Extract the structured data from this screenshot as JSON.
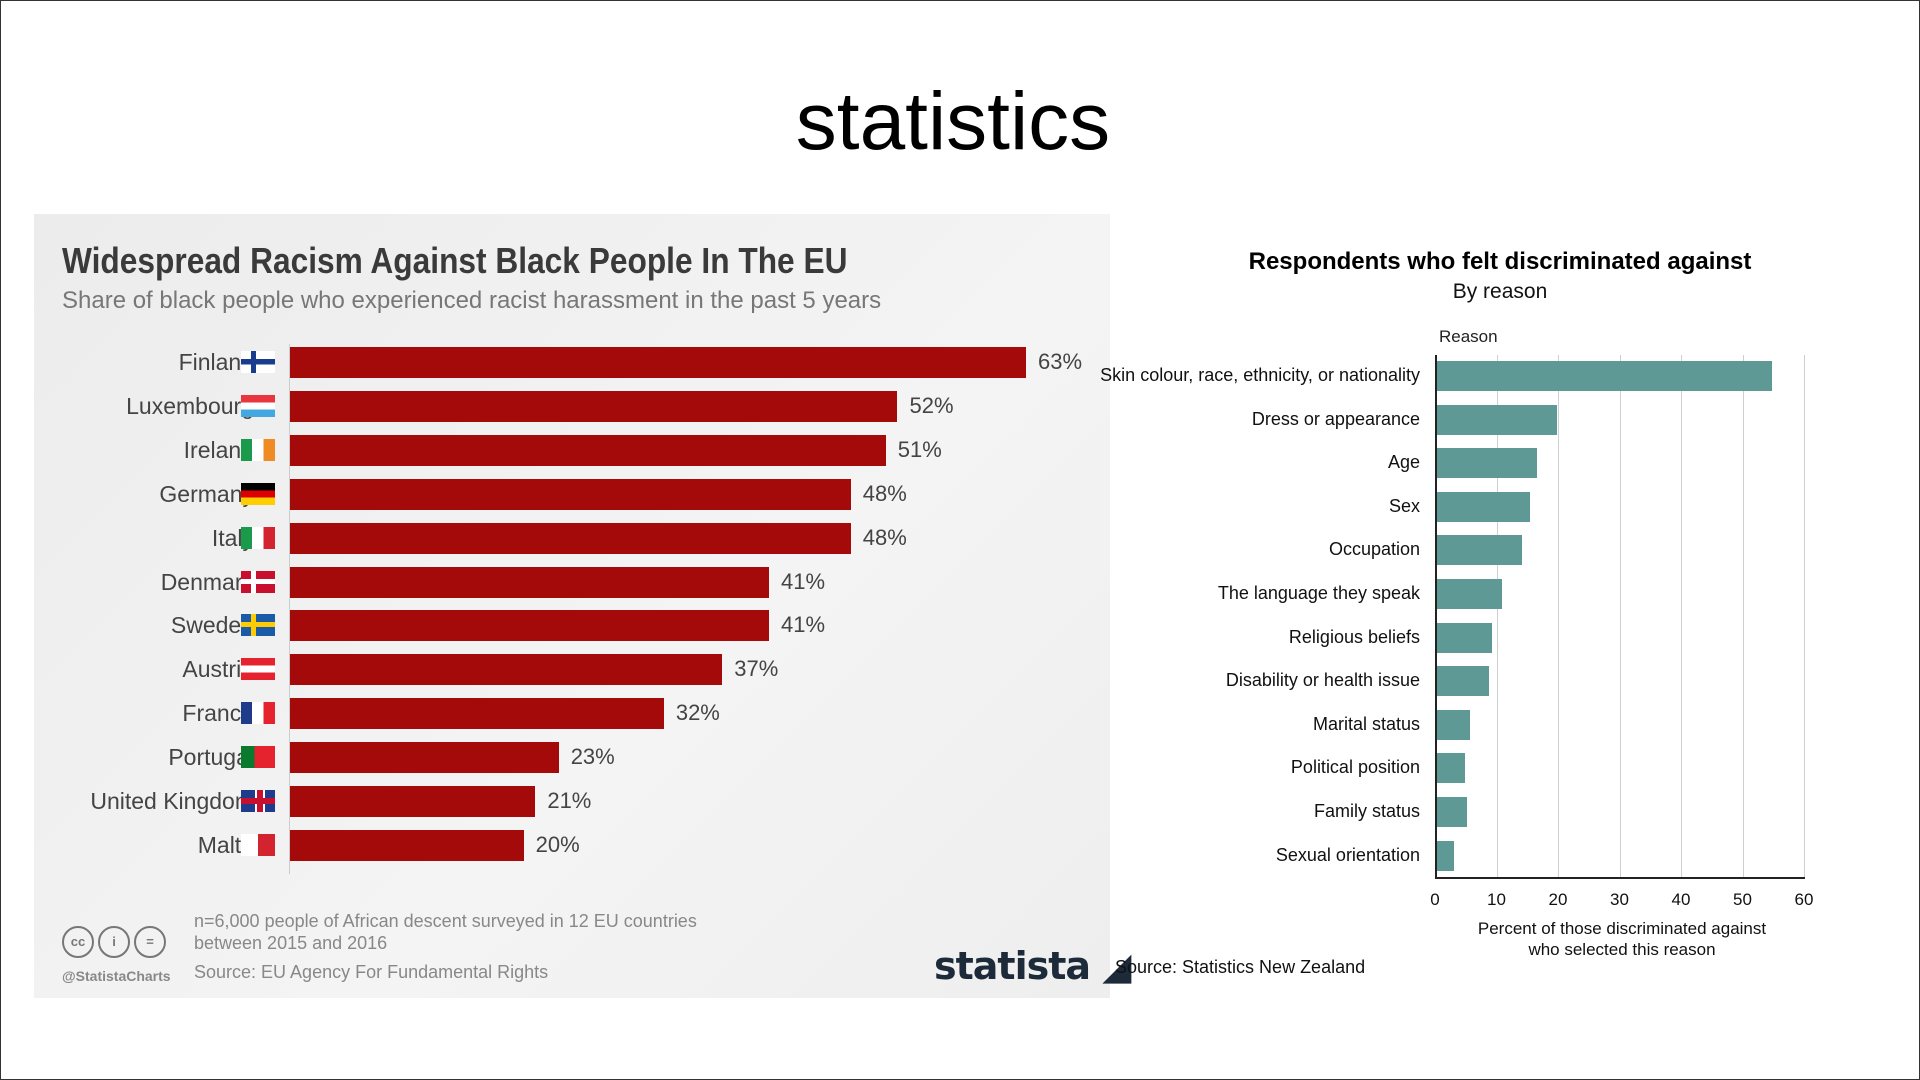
{
  "slide_title": "statistics",
  "chart_data": [
    {
      "type": "bar",
      "orientation": "horizontal",
      "title": "Widespread Racism Against Black People In The EU",
      "subtitle": "Share of black people who experienced racist harassment in the past 5 years",
      "categories": [
        "Finland",
        "Luxembourg",
        "Ireland",
        "Germany",
        "Italy",
        "Denmark",
        "Sweden",
        "Austria",
        "France",
        "Portugal",
        "United Kingdom",
        "Malta"
      ],
      "values": [
        63,
        52,
        51,
        48,
        48,
        41,
        41,
        37,
        32,
        23,
        21,
        20
      ],
      "data_labels": [
        "63%",
        "52%",
        "51%",
        "48%",
        "48%",
        "41%",
        "41%",
        "37%",
        "32%",
        "23%",
        "21%",
        "20%"
      ],
      "unit": "%",
      "bar_color": "#a50a0a",
      "flags": [
        "finland",
        "luxembourg",
        "ireland",
        "germany",
        "italy",
        "denmark",
        "sweden",
        "austria",
        "france",
        "portugal",
        "united-kingdom",
        "malta"
      ],
      "note_line1": "n=6,000 people of African descent surveyed in 12 EU countries",
      "note_line2": "between 2015 and 2016",
      "source": "Source: EU Agency For Fundamental Rights",
      "handle": "@StatistaCharts",
      "license_icons": [
        "cc",
        "by",
        "nd"
      ],
      "logo": "statista",
      "grid": false
    },
    {
      "type": "bar",
      "orientation": "horizontal",
      "title": "Respondents who felt discriminated against",
      "subtitle": "By reason",
      "ylabel": "Reason",
      "xlabel_line1": "Percent of those discriminated against",
      "xlabel_line2": "who selected this reason",
      "categories": [
        "Skin colour, race, ethnicity, or nationality",
        "Dress or appearance",
        "Age",
        "Sex",
        "Occupation",
        "The language they speak",
        "Religious beliefs",
        "Disability or health issue",
        "Marital status",
        "Political position",
        "Family status",
        "Sexual orientation"
      ],
      "values": [
        54.5,
        19.5,
        16.3,
        15.2,
        13.9,
        10.6,
        8.9,
        8.5,
        5.4,
        4.6,
        4.9,
        2.8
      ],
      "xlim": [
        0,
        60
      ],
      "xticks": [
        "0",
        "10",
        "20",
        "30",
        "40",
        "50",
        "60"
      ],
      "bar_color": "#5f9995",
      "grid": true,
      "source": "Source: Statistics New Zealand"
    }
  ]
}
